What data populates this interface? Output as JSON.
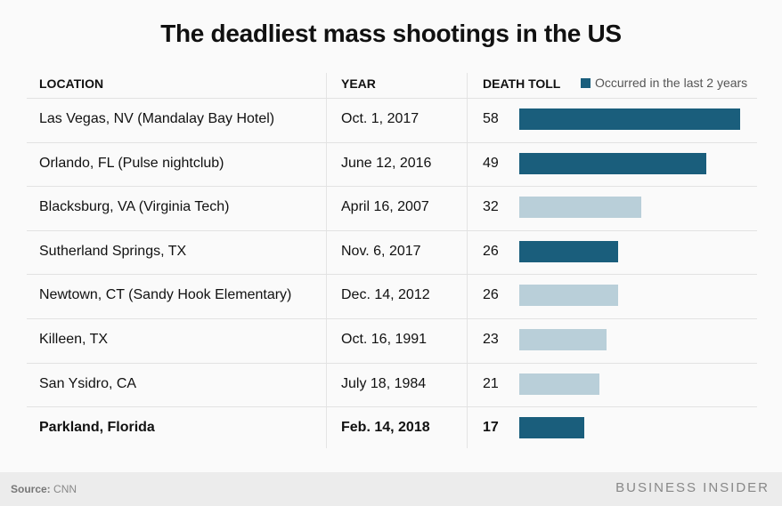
{
  "title": "The deadliest mass shootings in the US",
  "headers": {
    "location": "LOCATION",
    "year": "YEAR",
    "toll": "DEATH TOLL"
  },
  "legend": {
    "label": "Occurred in the last 2 years",
    "color": "#1a5e7c"
  },
  "colors": {
    "recent": "#1a5e7c",
    "older": "#b9cfd9"
  },
  "chart_data": {
    "type": "bar",
    "title": "The deadliest mass shootings in the US",
    "categories": [
      "Las Vegas, NV (Mandalay Bay Hotel)",
      "Orlando, FL (Pulse nightclub)",
      "Blacksburg, VA (Virginia Tech)",
      "Sutherland Springs, TX",
      "Newtown, CT (Sandy Hook Elementary)",
      "Killeen, TX",
      "San Ysidro, CA",
      "Parkland, Florida"
    ],
    "dates": [
      "Oct. 1, 2017",
      "June 12, 2016",
      "April 16, 2007",
      "Nov. 6, 2017",
      "Dec. 14, 2012",
      "Oct. 16, 1991",
      "July 18, 1984",
      "Feb. 14, 2018"
    ],
    "values": [
      58,
      49,
      32,
      26,
      26,
      23,
      21,
      17
    ],
    "recent": [
      true,
      true,
      false,
      true,
      false,
      false,
      false,
      true
    ],
    "highlighted": [
      false,
      false,
      false,
      false,
      false,
      false,
      false,
      true
    ],
    "orientation": "horizontal",
    "legend_placement": "top-right"
  },
  "footer": {
    "source_label": "Source:",
    "source": "CNN",
    "brand": "BUSINESS INSIDER"
  }
}
